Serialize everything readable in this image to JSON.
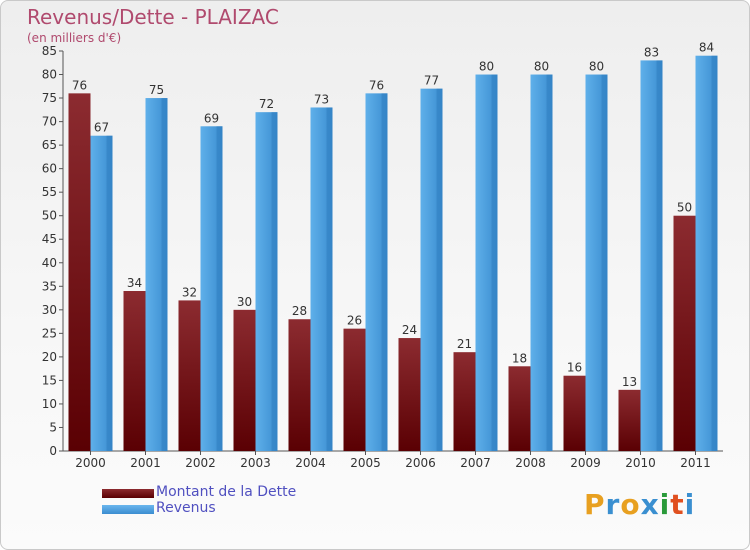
{
  "chart_data": {
    "type": "bar",
    "title": "Revenus/Dette - PLAIZAC",
    "subtitle": "(en milliers d'€)",
    "categories": [
      "2000",
      "2001",
      "2002",
      "2003",
      "2004",
      "2005",
      "2006",
      "2007",
      "2008",
      "2009",
      "2010",
      "2011"
    ],
    "series": [
      {
        "name": "Montant de la Dette",
        "color": "#6e0f14",
        "values": [
          76,
          34,
          32,
          30,
          28,
          26,
          24,
          21,
          18,
          16,
          13,
          50
        ]
      },
      {
        "name": "Revenus",
        "color": "#3f9ad8",
        "values": [
          67,
          75,
          69,
          72,
          73,
          76,
          77,
          80,
          80,
          80,
          83,
          84
        ]
      }
    ],
    "ylim": [
      0,
      85
    ],
    "yticks": [
      0,
      5,
      10,
      15,
      20,
      25,
      30,
      35,
      40,
      45,
      50,
      55,
      60,
      65,
      70,
      75,
      80,
      85
    ],
    "grid": false,
    "legend_position": "bottom-left"
  },
  "logo": {
    "letters": [
      "P",
      "r",
      "o",
      "x",
      "i",
      "t",
      "i"
    ],
    "colors": [
      "#e8a020",
      "#3a8fd0",
      "#e8a020",
      "#3a8fd0",
      "#2a9a3a",
      "#e05020",
      "#3a8fd0"
    ]
  }
}
